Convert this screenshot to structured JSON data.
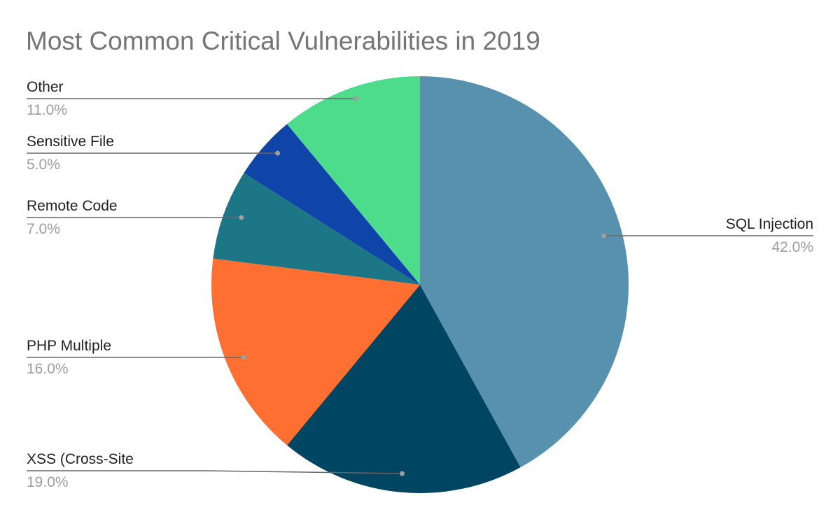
{
  "chart_data": {
    "type": "pie",
    "title": "Most Common Critical Vulnerabilities in 2019",
    "start_angle": "top",
    "direction": "clockwise",
    "slices": [
      {
        "label": "SQL Injection",
        "value": 42.0,
        "pct_label": "42.0%",
        "color": "#5891AD"
      },
      {
        "label": "XSS (Cross-Site",
        "value": 19.0,
        "pct_label": "19.0%",
        "color": "#004561"
      },
      {
        "label": "PHP Multiple",
        "value": 16.0,
        "pct_label": "16.0%",
        "color": "#FF6F31"
      },
      {
        "label": "Remote Code",
        "value": 7.0,
        "pct_label": "7.0%",
        "color": "#1C7685"
      },
      {
        "label": "Sensitive File",
        "value": 5.0,
        "pct_label": "5.0%",
        "color": "#0F45A8"
      },
      {
        "label": "Other",
        "value": 11.0,
        "pct_label": "11.0%",
        "color": "#4CDC8B"
      }
    ]
  }
}
